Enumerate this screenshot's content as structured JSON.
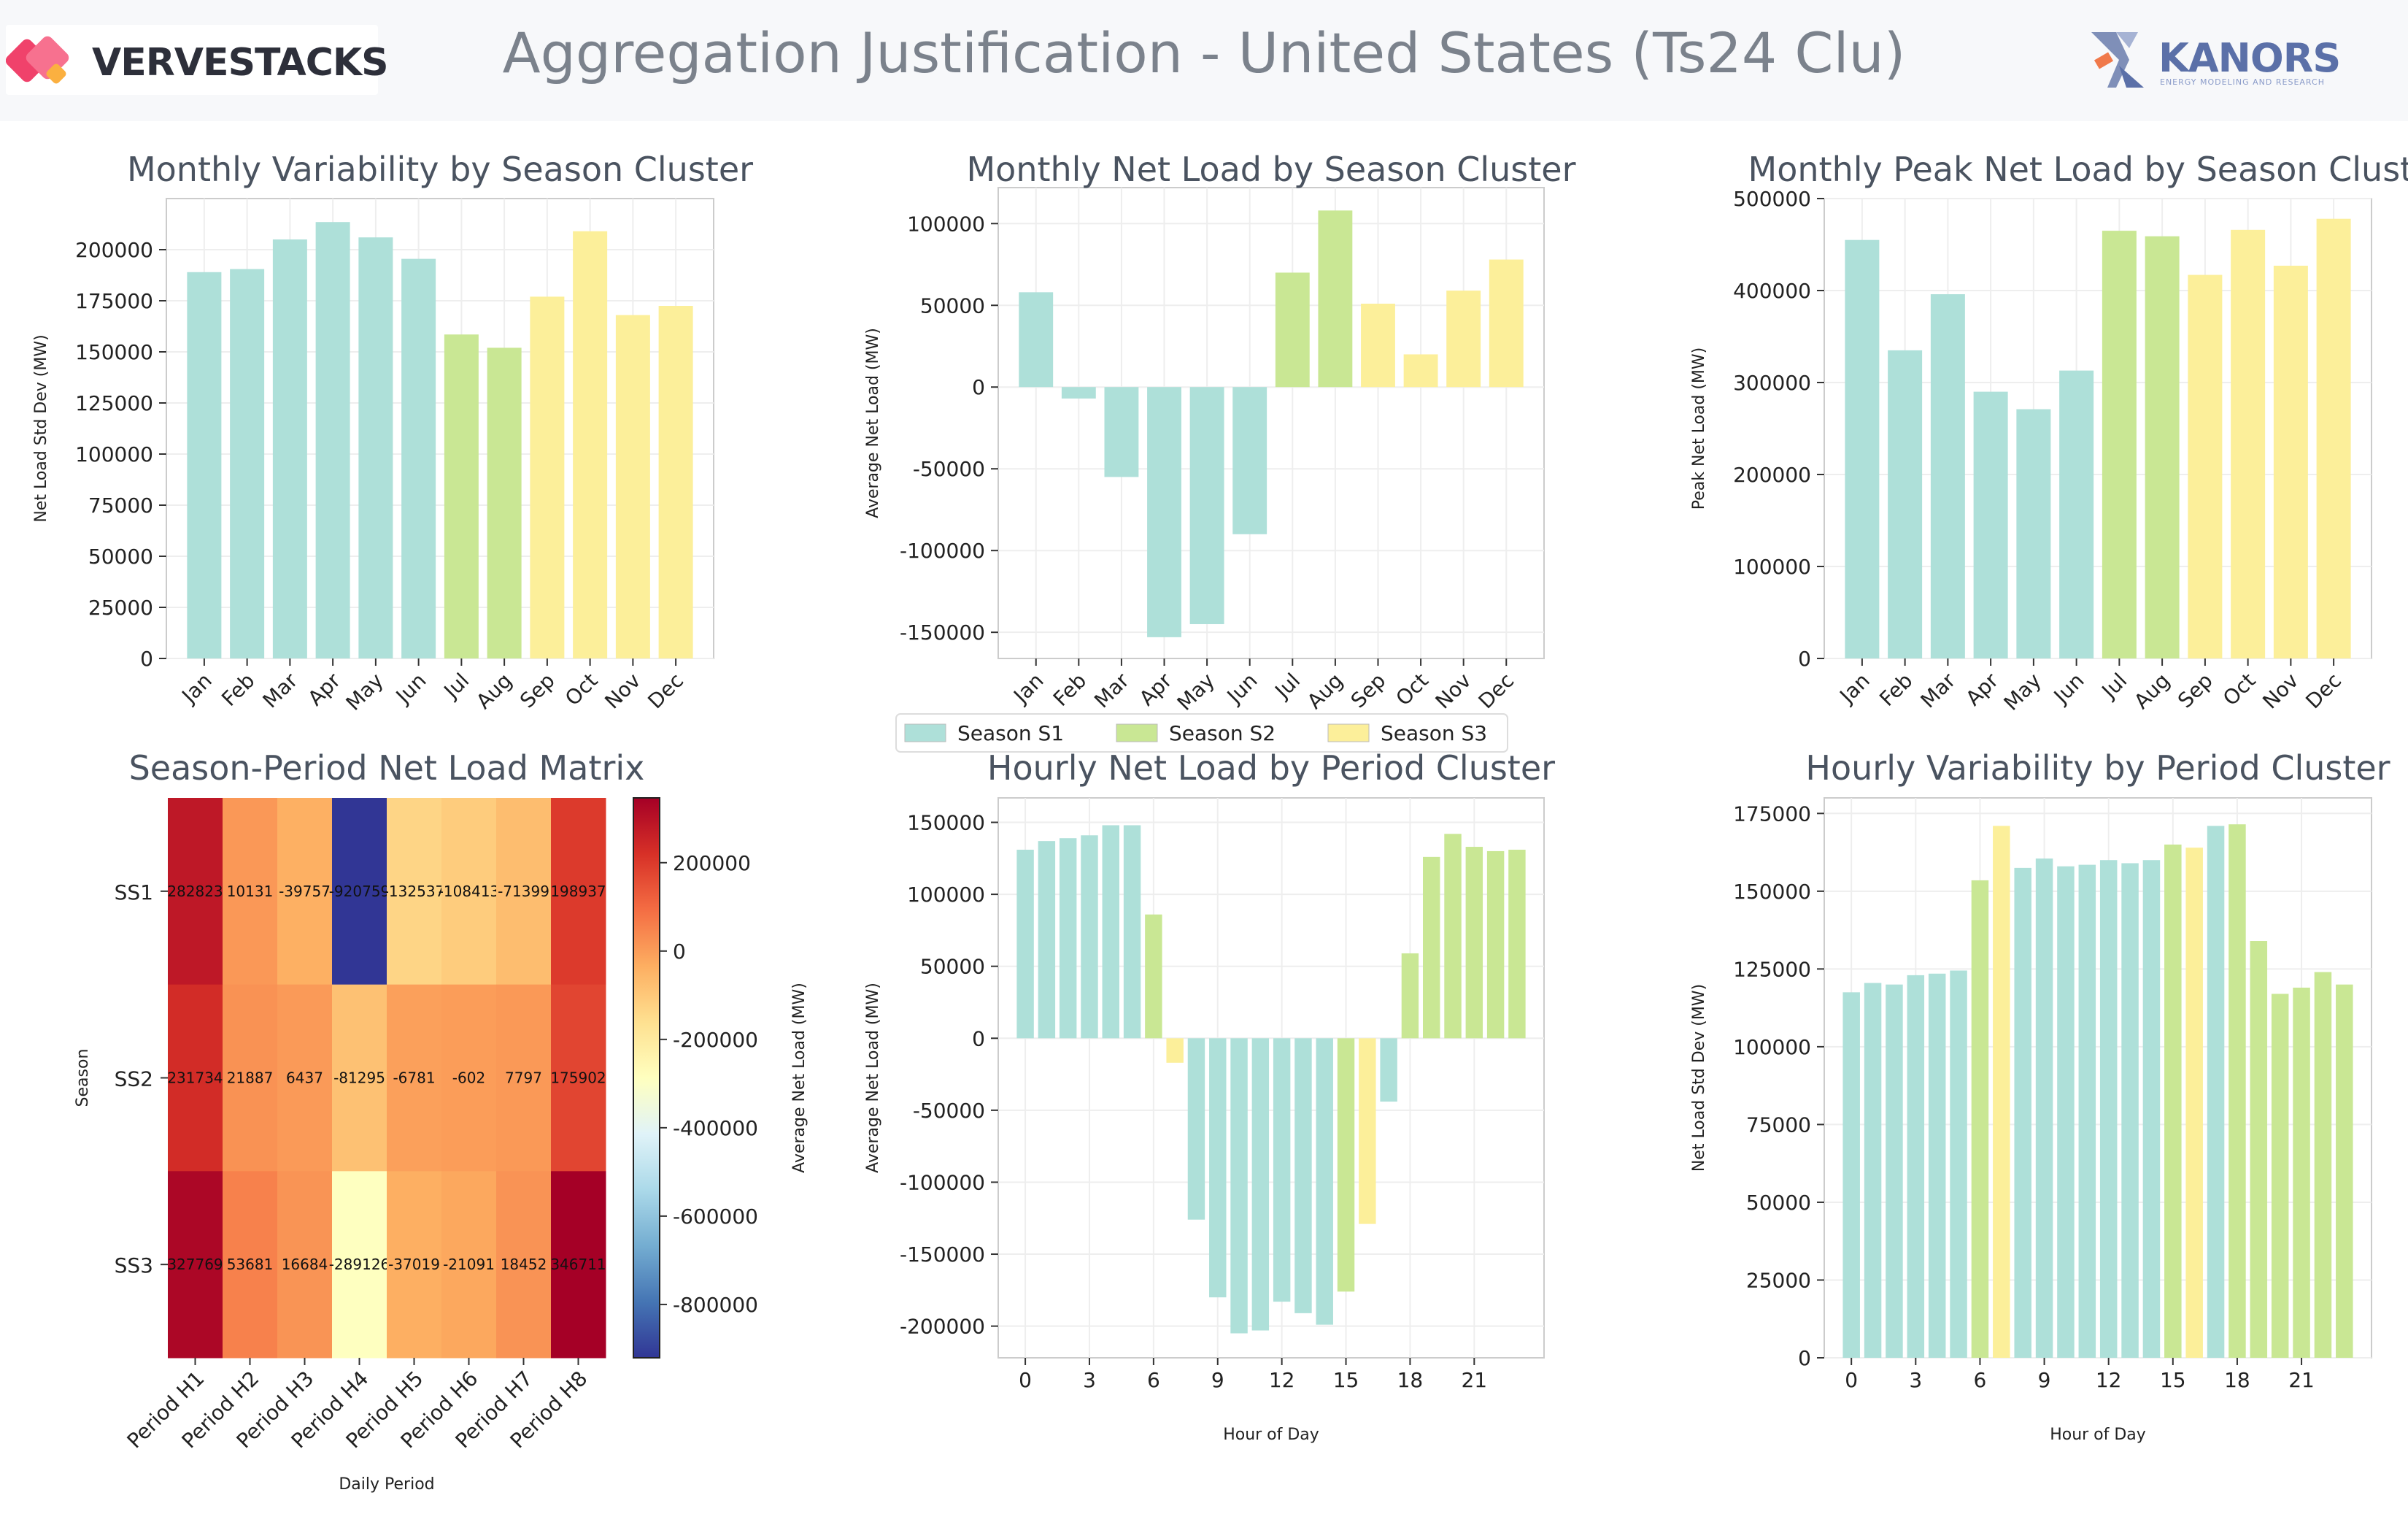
{
  "header": {
    "title": "Aggregation Justification - United States (Ts24 Clu)",
    "logo_left_text": "VERVESTACKS",
    "logo_right_text": "KANORS",
    "logo_right_tagline": "ENERGY MODELING AND RESEARCH"
  },
  "colors": {
    "S1": "#aee0d9",
    "S2": "#c9e794",
    "S3": "#fcef9a",
    "grid": "#eeeeee",
    "axis": "#cccccc",
    "title": "#4a5360",
    "cmap": [
      "#313695",
      "#4575b4",
      "#74add1",
      "#abd9e9",
      "#e0f3f8",
      "#ffffbf",
      "#fee090",
      "#fdae61",
      "#f46d43",
      "#d73027",
      "#a50026"
    ]
  },
  "legend": {
    "items": [
      {
        "label": "Season S1",
        "color_key": "S1"
      },
      {
        "label": "Season S2",
        "color_key": "S2"
      },
      {
        "label": "Season S3",
        "color_key": "S3"
      }
    ]
  },
  "chart_data": [
    {
      "id": "c1",
      "type": "bar",
      "title": "Monthly Variability by Season Cluster",
      "xlabel": "",
      "ylabel": "Net Load Std Dev (MW)",
      "categories": [
        "Jan",
        "Feb",
        "Mar",
        "Apr",
        "May",
        "Jun",
        "Jul",
        "Aug",
        "Sep",
        "Oct",
        "Nov",
        "Dec"
      ],
      "values": [
        189000,
        190500,
        205000,
        213500,
        206000,
        195500,
        158500,
        152000,
        177000,
        209000,
        168000,
        172500
      ],
      "groups": [
        "S1",
        "S1",
        "S1",
        "S1",
        "S1",
        "S1",
        "S2",
        "S2",
        "S3",
        "S3",
        "S3",
        "S3"
      ],
      "ylim": [
        0,
        225000
      ],
      "yticks": [
        0,
        25000,
        50000,
        75000,
        100000,
        125000,
        150000,
        175000,
        200000
      ],
      "rotate_x": true,
      "grid": true
    },
    {
      "id": "c2",
      "type": "bar",
      "title": "Monthly Net Load by Season Cluster",
      "xlabel": "",
      "ylabel": "Average Net Load (MW)",
      "categories": [
        "Jan",
        "Feb",
        "Mar",
        "Apr",
        "May",
        "Jun",
        "Jul",
        "Aug",
        "Sep",
        "Oct",
        "Nov",
        "Dec"
      ],
      "values": [
        58000,
        -7000,
        -55000,
        -153000,
        -145000,
        -90000,
        70000,
        108000,
        51000,
        20000,
        59000,
        78000
      ],
      "groups": [
        "S1",
        "S1",
        "S1",
        "S1",
        "S1",
        "S1",
        "S2",
        "S2",
        "S3",
        "S3",
        "S3",
        "S3"
      ],
      "ylim": [
        -166000,
        122000
      ],
      "yticks": [
        -150000,
        -100000,
        -50000,
        0,
        50000,
        100000
      ],
      "rotate_x": true,
      "grid": true
    },
    {
      "id": "c3",
      "type": "bar",
      "title": "Monthly Peak Net Load by Season Cluster",
      "xlabel": "",
      "ylabel": "Peak Net Load (MW)",
      "categories": [
        "Jan",
        "Feb",
        "Mar",
        "Apr",
        "May",
        "Jun",
        "Jul",
        "Aug",
        "Sep",
        "Oct",
        "Nov",
        "Dec"
      ],
      "values": [
        455000,
        335000,
        396000,
        290000,
        271000,
        313000,
        465000,
        459000,
        417000,
        466000,
        427000,
        478000
      ],
      "groups": [
        "S1",
        "S1",
        "S1",
        "S1",
        "S1",
        "S1",
        "S2",
        "S2",
        "S3",
        "S3",
        "S3",
        "S3"
      ],
      "ylim": [
        0,
        500000
      ],
      "yticks": [
        0,
        100000,
        200000,
        300000,
        400000,
        500000
      ],
      "rotate_x": true,
      "grid": true
    },
    {
      "id": "c4",
      "type": "heatmap",
      "title": "Season-Period Net Load Matrix",
      "xlabel": "Daily Period",
      "ylabel": "Season",
      "colorbar_label": "Average Net Load (MW)",
      "x_categories": [
        "Period H1",
        "Period H2",
        "Period H3",
        "Period H4",
        "Period H5",
        "Period H6",
        "Period H7",
        "Period H8"
      ],
      "y_categories": [
        "SS1",
        "SS2",
        "SS3"
      ],
      "values": [
        [
          282823,
          10131,
          -39757,
          -920759,
          -132537,
          -108413,
          -71399,
          198937
        ],
        [
          231734,
          21887,
          6437,
          -81295,
          -6781,
          -602,
          7797,
          175902
        ],
        [
          327769,
          53681,
          16684,
          -289126,
          -37019,
          -21091,
          18452,
          346711
        ]
      ],
      "vmin": -920759,
      "vmax": 346711,
      "colorbar_ticks": [
        200000,
        0,
        -200000,
        -400000,
        -600000,
        -800000
      ]
    },
    {
      "id": "c5",
      "type": "bar",
      "title": "Hourly Net Load by Period Cluster",
      "xlabel": "Hour of Day",
      "ylabel": "Average Net Load (MW)",
      "categories": [
        0,
        1,
        2,
        3,
        4,
        5,
        6,
        7,
        8,
        9,
        10,
        11,
        12,
        13,
        14,
        15,
        16,
        17,
        18,
        19,
        20,
        21,
        22,
        23
      ],
      "values": [
        131000,
        137000,
        139000,
        141000,
        148000,
        148000,
        86000,
        -17000,
        -126000,
        -180000,
        -205000,
        -203000,
        -183000,
        -191000,
        -199000,
        -176000,
        -129000,
        -44000,
        59000,
        126000,
        142000,
        133000,
        130000,
        131000
      ],
      "groups": [
        "S1",
        "S1",
        "S1",
        "S1",
        "S1",
        "S1",
        "S2",
        "S3",
        "S1",
        "S1",
        "S1",
        "S1",
        "S1",
        "S1",
        "S1",
        "S2",
        "S3",
        "S1",
        "S2",
        "S2",
        "S2",
        "S2",
        "S2",
        "S2"
      ],
      "ylim": [
        -222000,
        167000
      ],
      "yticks": [
        -200000,
        -150000,
        -100000,
        -50000,
        0,
        50000,
        100000,
        150000
      ],
      "xticks": [
        0,
        3,
        6,
        9,
        12,
        15,
        18,
        21
      ],
      "grid": true
    },
    {
      "id": "c6",
      "type": "bar",
      "title": "Hourly Variability by Period Cluster",
      "xlabel": "Hour of Day",
      "ylabel": "Net Load Std Dev (MW)",
      "categories": [
        0,
        1,
        2,
        3,
        4,
        5,
        6,
        7,
        8,
        9,
        10,
        11,
        12,
        13,
        14,
        15,
        16,
        17,
        18,
        19,
        20,
        21,
        22,
        23
      ],
      "values": [
        117500,
        120500,
        120000,
        123000,
        123500,
        124500,
        153500,
        171000,
        157500,
        160500,
        158000,
        158500,
        160000,
        159000,
        160000,
        165000,
        164000,
        171000,
        171500,
        134000,
        117000,
        119000,
        124000,
        120000
      ],
      "groups": [
        "S1",
        "S1",
        "S1",
        "S1",
        "S1",
        "S1",
        "S2",
        "S3",
        "S1",
        "S1",
        "S1",
        "S1",
        "S1",
        "S1",
        "S1",
        "S2",
        "S3",
        "S1",
        "S2",
        "S2",
        "S2",
        "S2",
        "S2",
        "S2"
      ],
      "ylim": [
        0,
        180000
      ],
      "yticks": [
        0,
        25000,
        50000,
        75000,
        100000,
        125000,
        150000,
        175000
      ],
      "xticks": [
        0,
        3,
        6,
        9,
        12,
        15,
        18,
        21
      ],
      "grid": true
    }
  ]
}
